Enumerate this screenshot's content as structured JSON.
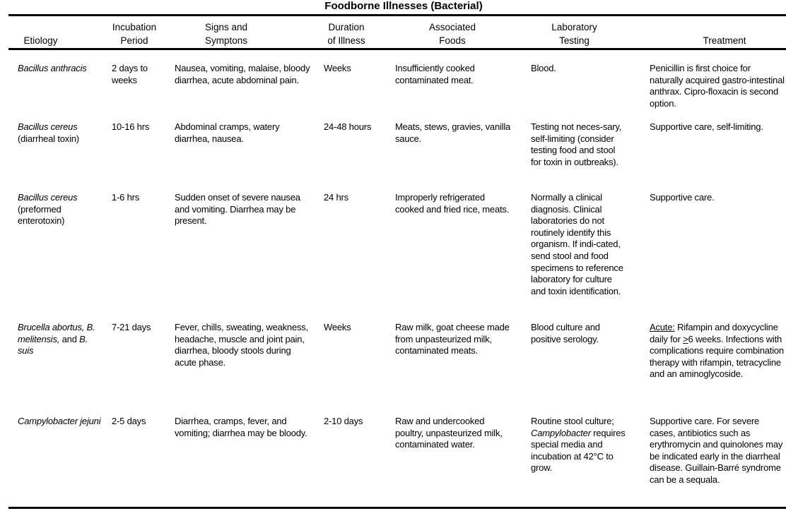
{
  "title": "Foodborne Illnesses (Bacterial)",
  "headers": [
    [
      "",
      "Etiology"
    ],
    [
      "Incubation",
      "Period"
    ],
    [
      "Signs and",
      "Symptons"
    ],
    [
      "Duration",
      "of Illness"
    ],
    [
      "Associated",
      "Foods"
    ],
    [
      "Laboratory",
      "Testing"
    ],
    [
      "",
      "Treatment"
    ]
  ],
  "rows": [
    [
      [
        {
          "t": "Bacillus anthracis",
          "i": true
        }
      ],
      [
        {
          "t": "2 days to weeks"
        }
      ],
      [
        {
          "t": "Nausea, vomiting, malaise, bloody diarrhea, acute abdominal pain."
        }
      ],
      [
        {
          "t": "Weeks"
        }
      ],
      [
        {
          "t": "Insufficiently cooked contaminated meat."
        }
      ],
      [
        {
          "t": "Blood."
        }
      ],
      [
        {
          "t": "Penicillin is first choice for naturally acquired gastro-intestinal anthrax. Cipro-floxacin is second option."
        }
      ]
    ],
    [
      [
        {
          "t": "Bacillus cereus",
          "i": true
        },
        {
          "t": " (diarrheal toxin)"
        }
      ],
      [
        {
          "t": "10-16 hrs"
        }
      ],
      [
        {
          "t": "Abdominal cramps, watery diarrhea, nausea."
        }
      ],
      [
        {
          "t": "24-48 hours"
        }
      ],
      [
        {
          "t": "Meats, stews, gravies, vanilla sauce."
        }
      ],
      [
        {
          "t": "Testing not neces-sary, self-limiting (consider testing food and stool for toxin in outbreaks)."
        }
      ],
      [
        {
          "t": "Supportive care, self-limiting."
        }
      ]
    ],
    [
      [
        {
          "t": "Bacillus cereus",
          "i": true
        },
        {
          "t": " (preformed enterotoxin)"
        }
      ],
      [
        {
          "t": "1-6 hrs"
        }
      ],
      [
        {
          "t": "Sudden onset of severe nausea and vomiting. Diarrhea may be present."
        }
      ],
      [
        {
          "t": "24 hrs"
        }
      ],
      [
        {
          "t": "Improperly refrigerated cooked and fried rice, meats."
        }
      ],
      [
        {
          "t": "Normally a clinical diagnosis. Clinical laboratories do not routinely identify this organism. If indi-cated, send stool and food specimens to reference laboratory for culture and toxin identification."
        }
      ],
      [
        {
          "t": "Supportive care."
        }
      ]
    ],
    [
      [
        {
          "t": "Brucella abortus, B. melitensis,",
          "i": true
        },
        {
          "t": " and "
        },
        {
          "t": "B. suis",
          "i": true
        }
      ],
      [
        {
          "t": "7-21 days"
        }
      ],
      [
        {
          "t": "Fever, chills, sweating, weakness, headache, muscle and joint pain, diarrhea, bloody stools during acute phase."
        }
      ],
      [
        {
          "t": "Weeks"
        }
      ],
      [
        {
          "t": "Raw milk, goat cheese made from unpasteurized milk, contaminated meats."
        }
      ],
      [
        {
          "t": "Blood culture and positive serology."
        }
      ],
      [
        {
          "t": "Acute:",
          "u": true
        },
        {
          "t": " Rifampin and doxycycline daily for "
        },
        {
          "t": ">",
          "u": true
        },
        {
          "t": "6 weeks. Infections with complications require combination therapy with rifampin, tetracycline and an aminoglycoside."
        }
      ]
    ],
    [
      [
        {
          "t": "Campylobacter jejuni",
          "i": true
        }
      ],
      [
        {
          "t": "2-5 days"
        }
      ],
      [
        {
          "t": "Diarrhea, cramps, fever, and vomiting; diarrhea may be bloody."
        }
      ],
      [
        {
          "t": "2-10 days"
        }
      ],
      [
        {
          "t": "Raw and undercooked poultry, unpasteurized milk, contaminated water."
        }
      ],
      [
        {
          "t": "Routine stool culture; "
        },
        {
          "t": "Campylobacter",
          "i": true
        },
        {
          "t": " requires special media and incubation at 42°C to grow."
        }
      ],
      [
        {
          "t": "Supportive care. For severe cases, antibiotics such as erythromycin and quinolones may be indicated early in the diarrheal disease. Guillain-Barré syndrome can be a sequala."
        }
      ]
    ]
  ]
}
